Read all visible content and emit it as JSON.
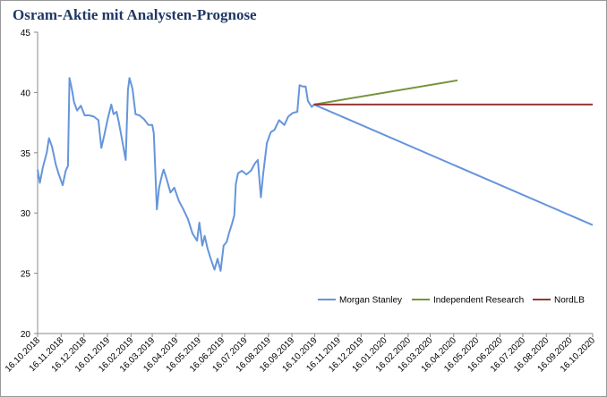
{
  "chart_data": {
    "type": "line",
    "title": "Osram-Aktie mit Analysten-Prognose",
    "xlim": [
      "16.10.2018",
      "16.10.2020"
    ],
    "xticks": [
      "16.10.2018",
      "16.11.2018",
      "16.12.2018",
      "16.01.2019",
      "16.02.2019",
      "16.03.2019",
      "16.04.2019",
      "16.05.2019",
      "16.06.2019",
      "16.07.2019",
      "16.08.2019",
      "16.09.2019",
      "16.10.2019",
      "16.11.2019",
      "16.12.2019",
      "16.01.2020",
      "16.02.2020",
      "16.03.2020",
      "16.04.2020",
      "16.05.2020",
      "16.06.2020",
      "16.07.2020",
      "16.08.2020",
      "16.09.2020",
      "16.10.2020"
    ],
    "ylim": [
      20,
      45
    ],
    "yticks": [
      20,
      25,
      30,
      35,
      40,
      45
    ],
    "grid": false,
    "legend": "bottom-right",
    "series": [
      {
        "name": "Morgan Stanley",
        "color": "#6595dc",
        "x": [
          "16.10.2018",
          "19.10.2018",
          "23.10.2018",
          "28.10.2018",
          "31.10.2018",
          "04.11.2018",
          "09.11.2018",
          "13.11.2018",
          "18.11.2018",
          "22.11.2018",
          "25.11.2018",
          "27.11.2018",
          "30.11.2018",
          "03.12.2018",
          "07.12.2018",
          "12.12.2018",
          "17.12.2018",
          "23.12.2018",
          "29.12.2018",
          "04.01.2019",
          "08.01.2019",
          "12.01.2019",
          "16.01.2019",
          "21.01.2019",
          "24.01.2019",
          "28.01.2019",
          "31.01.2019",
          "05.02.2019",
          "09.02.2019",
          "12.02.2019",
          "14.02.2019",
          "18.02.2019",
          "22.02.2019",
          "27.02.2019",
          "05.03.2019",
          "11.03.2019",
          "16.03.2019",
          "18.03.2019",
          "22.03.2019",
          "25.03.2019",
          "29.03.2019",
          "31.03.2019",
          "04.04.2019",
          "09.04.2019",
          "14.04.2019",
          "20.04.2019",
          "26.04.2019",
          "02.05.2019",
          "08.05.2019",
          "14.05.2019",
          "17.05.2019",
          "21.05.2019",
          "24.05.2019",
          "28.05.2019",
          "01.06.2019",
          "06.06.2019",
          "10.06.2019",
          "14.06.2019",
          "18.06.2019",
          "22.06.2019",
          "25.06.2019",
          "29.06.2019",
          "02.07.2019",
          "04.07.2019",
          "07.07.2019",
          "12.07.2019",
          "18.07.2019",
          "24.07.2019",
          "29.07.2019",
          "02.08.2019",
          "06.08.2019",
          "09.08.2019",
          "14.08.2019",
          "19.08.2019",
          "24.08.2019",
          "30.08.2019",
          "06.09.2019",
          "11.09.2019",
          "17.09.2019",
          "23.09.2019",
          "26.09.2019",
          "30.09.2019",
          "04.10.2019",
          "07.10.2019",
          "12.10.2019",
          "15.10.2019",
          "16.10.2020"
        ],
        "values": [
          33.6,
          32.5,
          33.8,
          35.0,
          36.2,
          35.5,
          34.0,
          33.2,
          32.3,
          33.5,
          33.9,
          41.2,
          40.3,
          39.2,
          38.5,
          38.9,
          38.1,
          38.1,
          38.0,
          37.7,
          35.4,
          36.5,
          37.7,
          39.0,
          38.2,
          38.4,
          37.5,
          35.8,
          34.4,
          40.2,
          41.2,
          40.3,
          38.2,
          38.1,
          37.8,
          37.3,
          37.3,
          36.6,
          30.3,
          32.1,
          33.2,
          33.6,
          32.8,
          31.7,
          32.1,
          31.0,
          30.3,
          29.5,
          28.3,
          27.7,
          29.2,
          27.3,
          28.1,
          27.0,
          26.2,
          25.3,
          26.2,
          25.2,
          27.3,
          27.6,
          28.3,
          29.1,
          29.8,
          32.4,
          33.3,
          33.5,
          33.2,
          33.5,
          34.1,
          34.4,
          31.3,
          33.2,
          35.8,
          36.7,
          36.9,
          37.7,
          37.3,
          38.0,
          38.3,
          38.4,
          40.6,
          40.5,
          40.5,
          39.3,
          38.8,
          39.0,
          29.0
        ]
      },
      {
        "name": "Independent Research",
        "color": "#77933c",
        "x": [
          "15.10.2019",
          "21.04.2020"
        ],
        "values": [
          39.0,
          41.0
        ]
      },
      {
        "name": "NordLB",
        "color": "#953735",
        "x": [
          "15.10.2019",
          "16.10.2020"
        ],
        "values": [
          39.0,
          39.0
        ]
      }
    ]
  }
}
